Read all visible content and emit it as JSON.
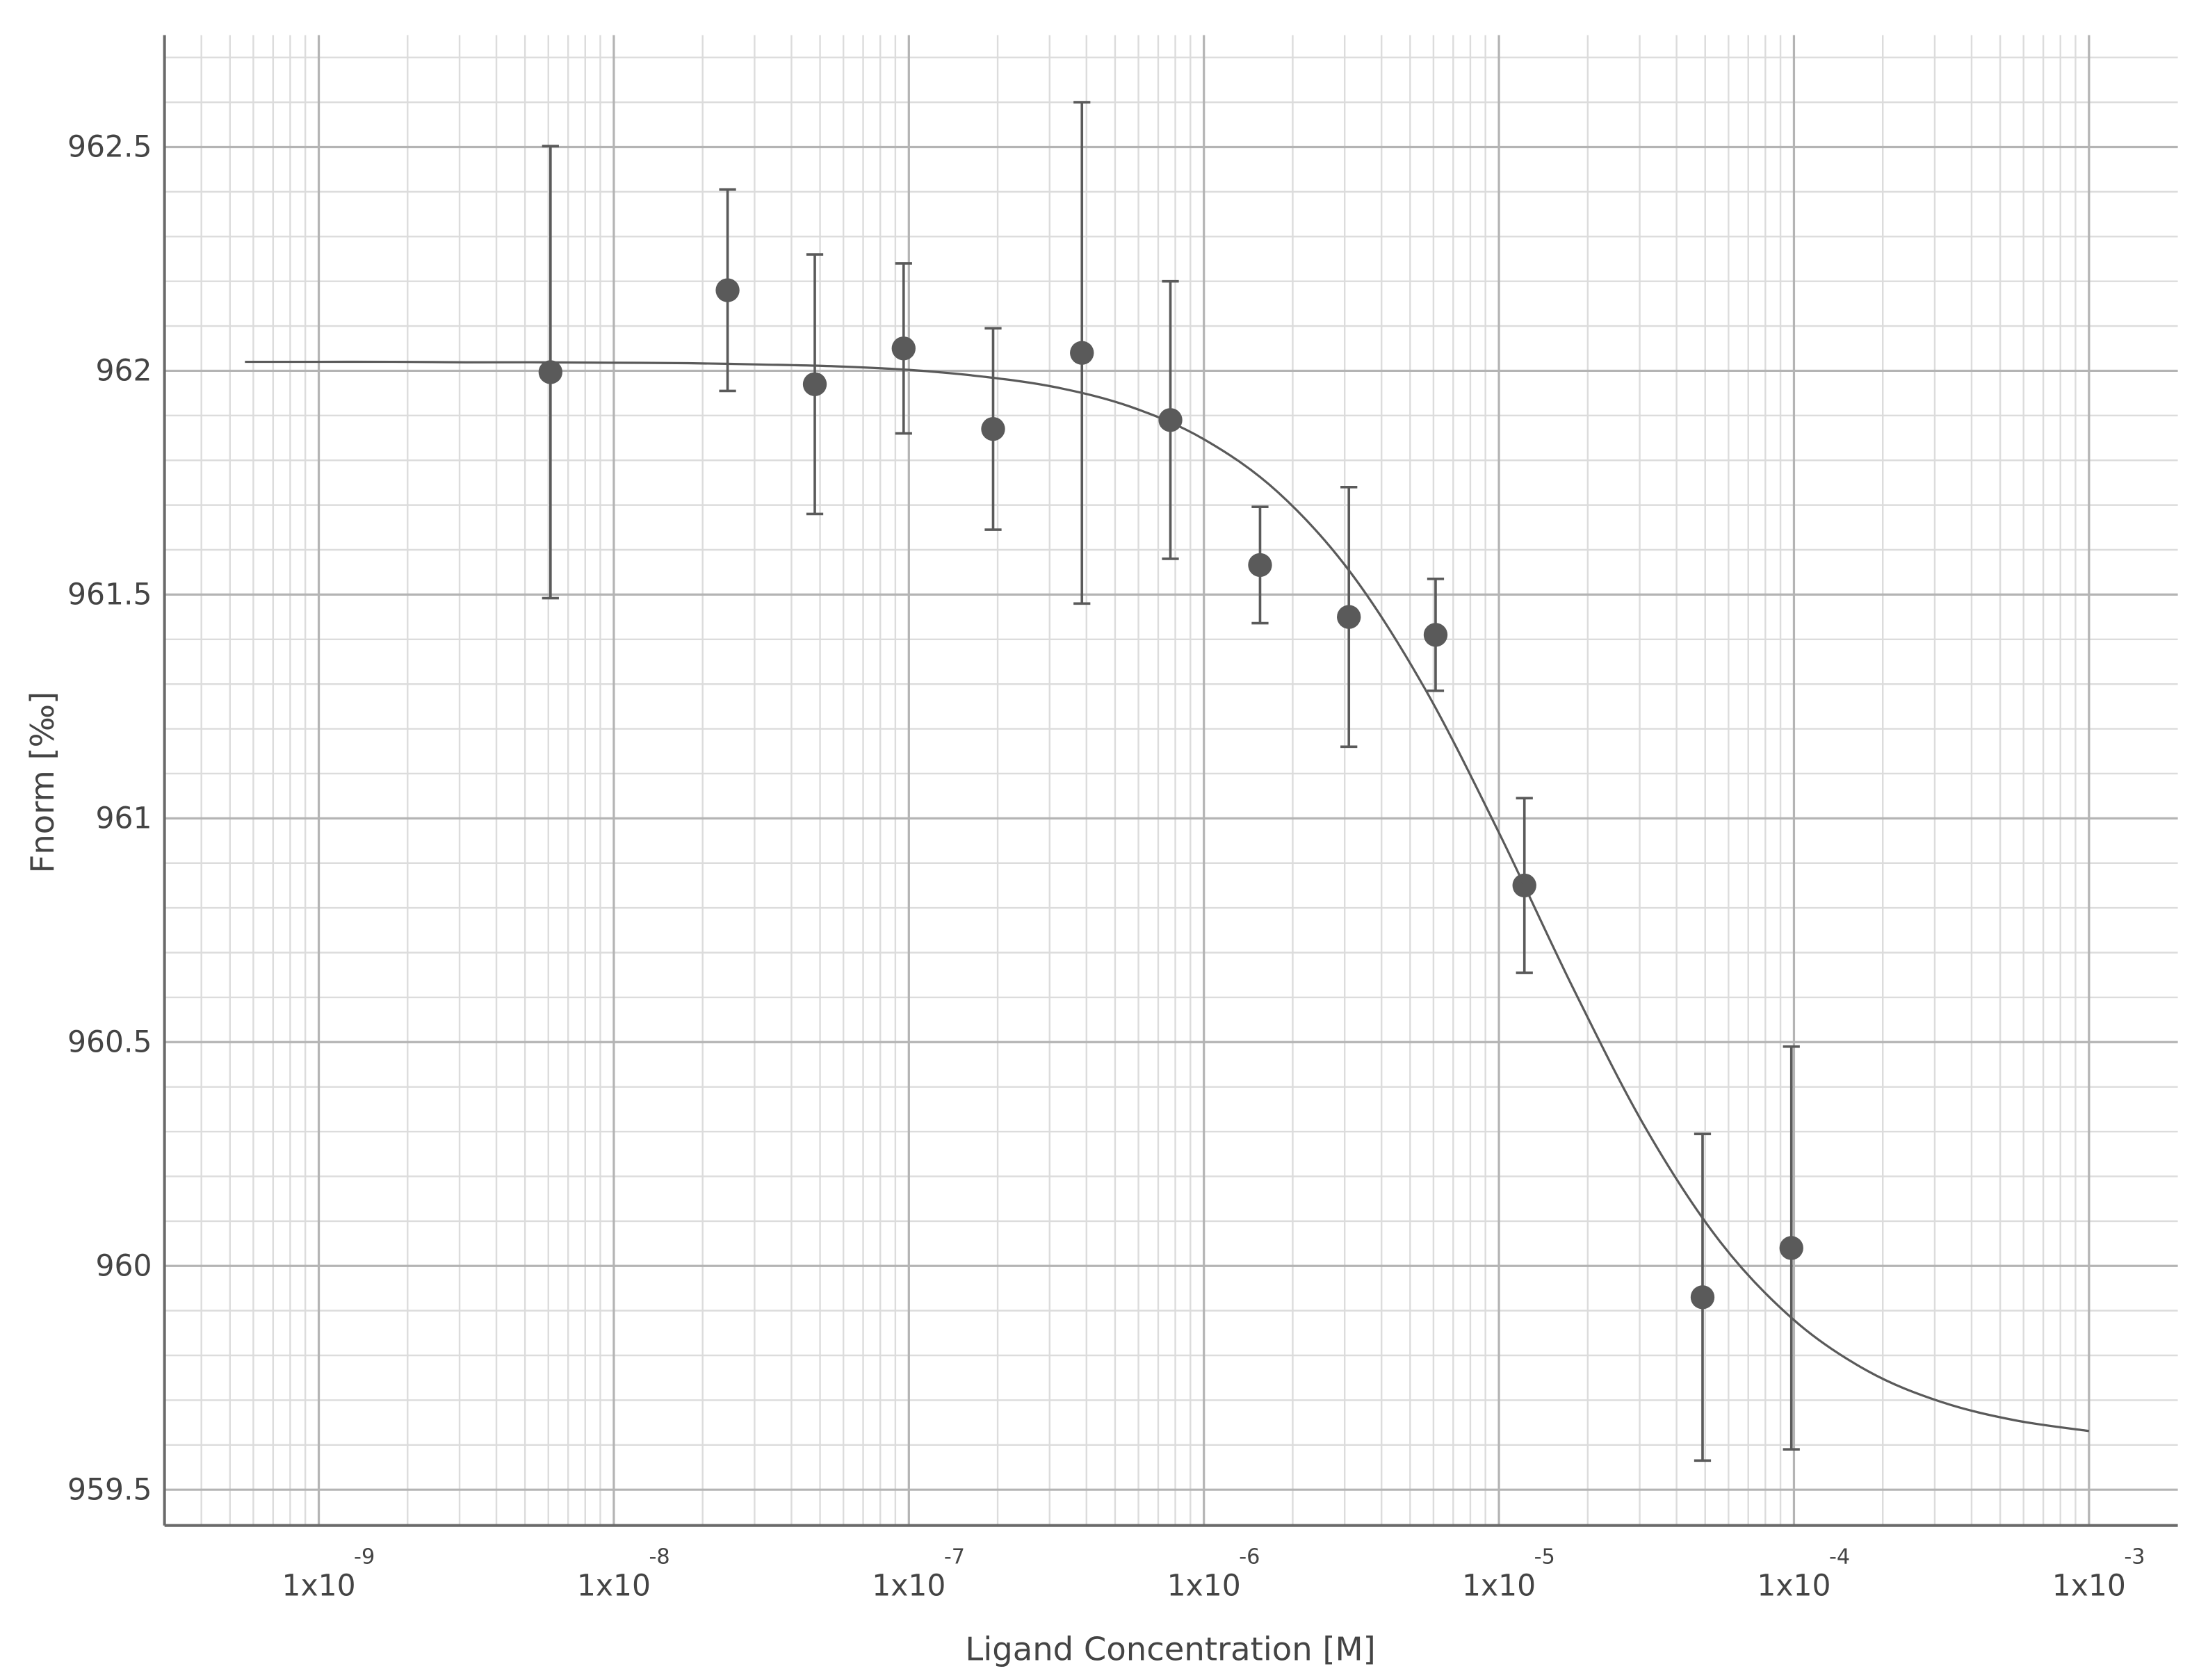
{
  "chart_data": {
    "type": "scatter",
    "x_label": "Ligand Concentration [M]",
    "y_label": "Fnorm [‰]",
    "xscale": "log",
    "xlim": [
      3e-10,
      0.002
    ],
    "ylim": [
      959.42,
      962.75
    ],
    "xticks": [
      {
        "value": 1e-09,
        "label": "1x10",
        "exponent": "-9"
      },
      {
        "value": 1e-08,
        "label": "1x10",
        "exponent": "-8"
      },
      {
        "value": 1e-07,
        "label": "1x10",
        "exponent": "-7"
      },
      {
        "value": 1e-06,
        "label": "1x10",
        "exponent": "-6"
      },
      {
        "value": 1e-05,
        "label": "1x10",
        "exponent": "-5"
      },
      {
        "value": 0.0001,
        "label": "1x10",
        "exponent": "-4"
      },
      {
        "value": 0.001,
        "label": "1x10",
        "exponent": "-3"
      }
    ],
    "yticks": [
      959.5,
      960,
      960.5,
      961,
      961.5,
      962,
      962.5
    ],
    "grid": true,
    "minor_grid": true,
    "series": [
      {
        "type": "scatter",
        "color": "#5a5a5a",
        "x": [
          6.1e-09,
          2.43e-08,
          4.8e-08,
          9.6e-08,
          1.93e-07,
          3.86e-07,
          7.7e-07,
          1.55e-06,
          3.1e-06,
          6.1e-06,
          1.22e-05,
          4.9e-05,
          9.8e-05
        ],
        "values": [
          961.997,
          962.18,
          961.97,
          962.05,
          961.87,
          962.04,
          961.89,
          961.566,
          961.45,
          961.41,
          960.85,
          959.93,
          960.04
        ],
        "errors": [
          0.505,
          0.225,
          0.29,
          0.19,
          0.225,
          0.56,
          0.31,
          0.13,
          0.29,
          0.125,
          0.195,
          0.365,
          0.45
        ]
      },
      {
        "type": "line",
        "color": "#5a5a5a",
        "x": [
          5.62e-10,
          1e-09,
          1.78e-09,
          3.16e-09,
          5.62e-09,
          1e-08,
          1.78e-08,
          3.16e-08,
          5.62e-08,
          1e-07,
          1.78e-07,
          3.16e-07,
          5.62e-07,
          1e-06,
          1.78e-06,
          3.16e-06,
          5.62e-06,
          1e-05,
          1.78e-05,
          3.16e-05,
          5.62e-05,
          0.0001,
          0.000178,
          0.000316,
          0.000562,
          0.001
        ],
        "values": [
          962.02,
          962.02,
          962.02,
          962.019,
          962.019,
          962.018,
          962.017,
          962.014,
          962.01,
          962.002,
          961.987,
          961.963,
          961.92,
          961.847,
          961.729,
          961.547,
          961.289,
          960.968,
          960.622,
          960.305,
          960.054,
          959.879,
          959.765,
          959.696,
          959.655,
          959.631
        ]
      }
    ]
  }
}
